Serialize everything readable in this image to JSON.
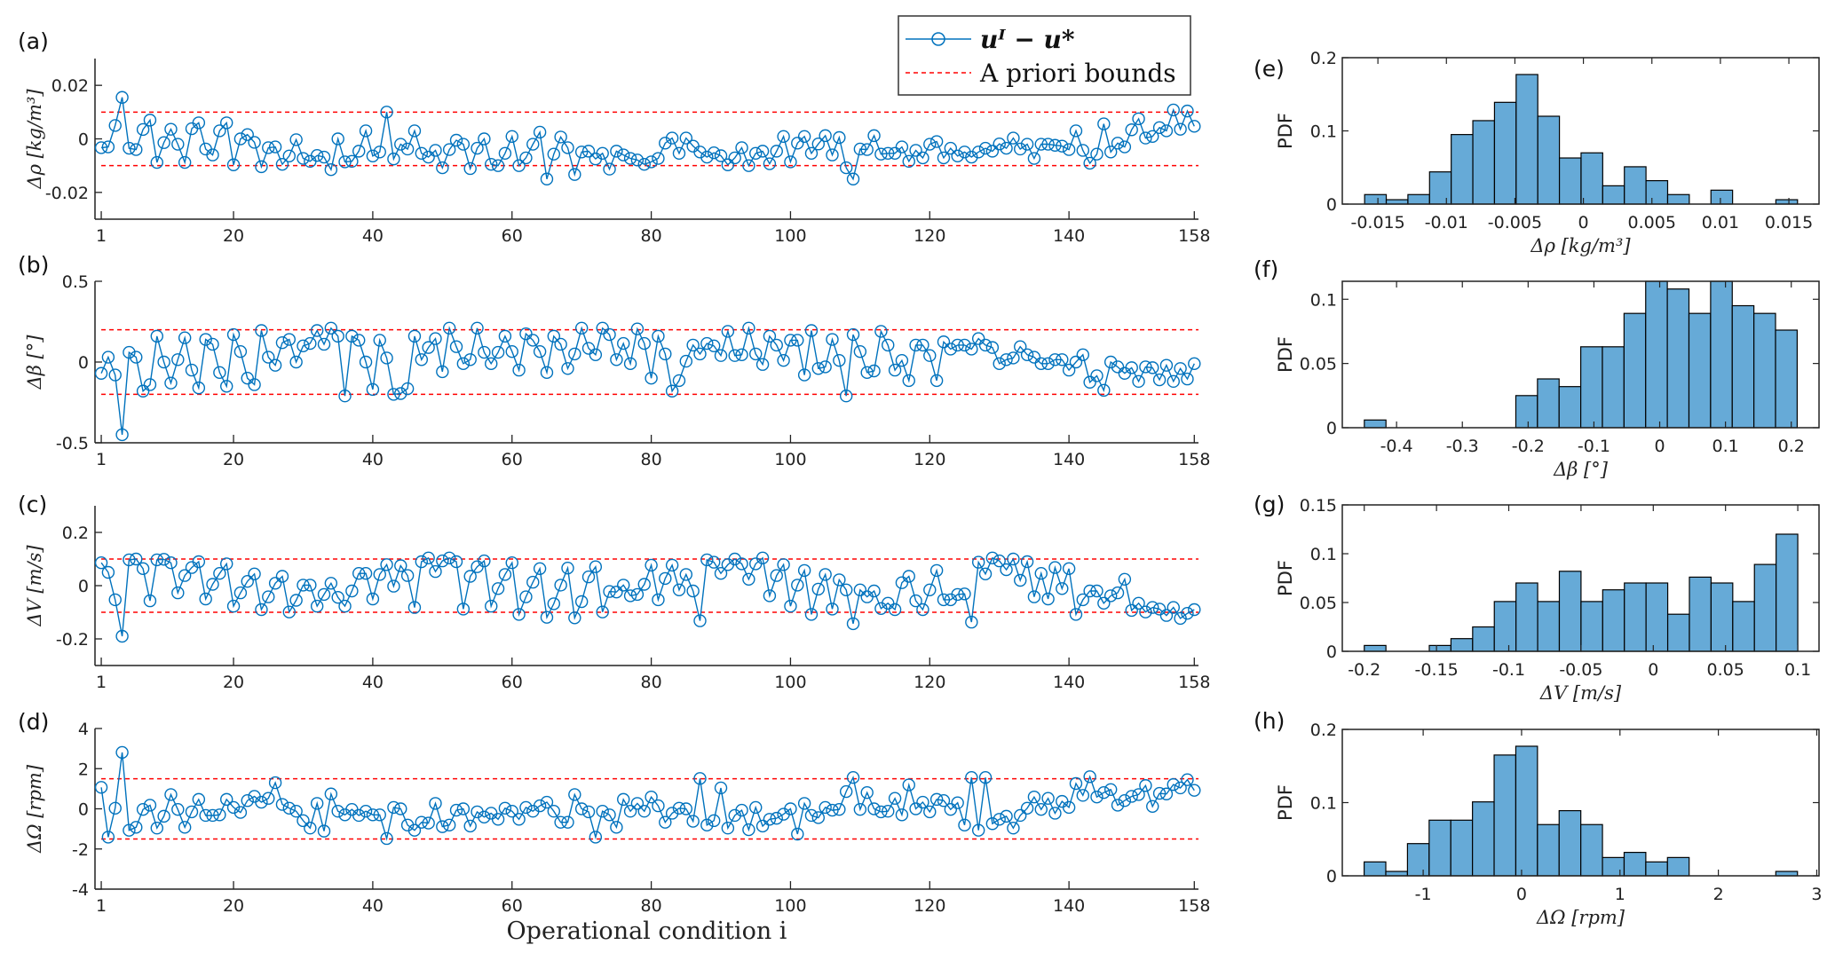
{
  "legend": {
    "series_label": "uᴵ − u*",
    "bounds_label": "A priori bounds",
    "position": "top-right of panel (a)"
  },
  "colors": {
    "series": "#0072BD",
    "bounds": "#FF0000",
    "hist_face": "#66AAD7",
    "hist_edge": "#000000"
  },
  "chart_data": [
    {
      "type": "line",
      "panel_label": "(a)",
      "ylabel": "Δρ [kg/m³]",
      "xlabel": "",
      "xlim": [
        0.1,
        158.6
      ],
      "ylim": [
        -0.03,
        0.03
      ],
      "xticks": [
        1,
        20,
        40,
        60,
        80,
        100,
        120,
        140,
        158
      ],
      "xtick_labels": [
        "1",
        "20",
        "40",
        "60",
        "80",
        "100",
        "120",
        "140",
        "158"
      ],
      "yticks": [
        -0.02,
        0,
        0.02
      ],
      "ytick_labels": [
        "-0.02",
        "0",
        "0.02"
      ],
      "bounds": [
        -0.01,
        0.01
      ],
      "marker": "circle",
      "grid": false,
      "values": [
        -0.0033,
        -0.003,
        0.005,
        0.0155,
        -0.0035,
        -0.004,
        0.0035,
        0.007,
        -0.0088,
        -0.0014,
        0.0036,
        -0.002,
        -0.0088,
        0.0038,
        0.006,
        -0.0038,
        -0.006,
        0.003,
        0.006,
        -0.0097,
        0,
        0.0016,
        -0.0013,
        -0.0104,
        -0.0033,
        -0.003,
        -0.0095,
        -0.0064,
        -0.0003,
        -0.0073,
        -0.0084,
        -0.0062,
        -0.0068,
        -0.0115,
        0,
        -0.0086,
        -0.0084,
        -0.0046,
        0.003,
        -0.0064,
        -0.0049,
        0.01,
        -0.0075,
        -0.002,
        -0.0038,
        0.003,
        -0.0054,
        -0.0068,
        -0.0043,
        -0.0108,
        -0.004,
        -0.0005,
        -0.002,
        -0.0111,
        -0.0035,
        0,
        -0.0095,
        -0.01,
        -0.0054,
        0.0009,
        -0.01,
        -0.0071,
        -0.002,
        0.0025,
        -0.015,
        -0.0057,
        0.0007,
        -0.0033,
        -0.0133,
        -0.0049,
        -0.0046,
        -0.0075,
        -0.0054,
        -0.0113,
        -0.0046,
        -0.006,
        -0.0073,
        -0.0079,
        -0.0095,
        -0.0086,
        -0.0073,
        -0.0016,
        0.0003,
        -0.0054,
        0.0003,
        -0.0027,
        -0.0049,
        -0.0068,
        -0.0052,
        -0.0063,
        -0.0097,
        -0.0071,
        -0.0033,
        -0.01,
        -0.0054,
        -0.0046,
        -0.0093,
        -0.0046,
        0.0009,
        -0.0086,
        -0.0016,
        0.0009,
        -0.0054,
        -0.0019,
        0.0012,
        -0.006,
        0.0005,
        -0.0108,
        -0.015,
        -0.0038,
        -0.004,
        0.0012,
        -0.0057,
        -0.0054,
        -0.0054,
        -0.003,
        -0.0084,
        -0.0043,
        -0.0071,
        -0.002,
        -0.001,
        -0.0071,
        -0.0035,
        -0.0064,
        -0.0049,
        -0.0068,
        -0.0049,
        -0.0035,
        -0.0046,
        -0.0019,
        -0.0035,
        0.0003,
        -0.0038,
        -0.002,
        -0.0073,
        -0.002,
        -0.002,
        -0.0024,
        -0.0027,
        -0.004,
        0.003,
        -0.0043,
        -0.0091,
        -0.0057,
        0.0056,
        -0.0049,
        -0.0016,
        -0.003,
        0.0034,
        0.0075,
        0.0003,
        0.0009,
        0.0042,
        0.003,
        0.0108,
        0.0036,
        0.0104,
        0.0047
      ]
    },
    {
      "type": "line",
      "panel_label": "(b)",
      "ylabel": "Δβ [°]",
      "xlabel": "",
      "xlim": [
        0.1,
        158.6
      ],
      "ylim": [
        -0.5,
        0.5
      ],
      "xticks": [
        1,
        20,
        40,
        60,
        80,
        100,
        120,
        140,
        158
      ],
      "xtick_labels": [
        "1",
        "20",
        "40",
        "60",
        "80",
        "100",
        "120",
        "140",
        "158"
      ],
      "yticks": [
        -0.5,
        0,
        0.5
      ],
      "ytick_labels": [
        "-0.5",
        "0",
        "0.5"
      ],
      "bounds": [
        -0.2,
        0.2
      ],
      "marker": "circle",
      "grid": false,
      "values": [
        -0.07,
        0.03,
        -0.08,
        -0.45,
        0.06,
        0.03,
        -0.18,
        -0.14,
        0.16,
        0,
        -0.13,
        0.015,
        0.15,
        -0.05,
        -0.16,
        0.14,
        0.11,
        -0.065,
        -0.15,
        0.17,
        0.065,
        -0.1,
        -0.14,
        0.195,
        0.03,
        -0.02,
        0.12,
        0.14,
        0,
        0.1,
        0.115,
        0.195,
        0.11,
        0.21,
        0.16,
        -0.21,
        0.16,
        0.135,
        0,
        -0.17,
        0.135,
        0.025,
        -0.2,
        -0.195,
        -0.165,
        0.16,
        0.015,
        0.09,
        0.145,
        -0.06,
        0.21,
        0.095,
        -0.01,
        0.015,
        0.21,
        0.06,
        -0.01,
        0.06,
        0.16,
        0.065,
        -0.05,
        0.175,
        0.135,
        0.065,
        -0.065,
        0.16,
        0.11,
        -0.04,
        0.05,
        0.21,
        0.085,
        0.045,
        0.21,
        0.17,
        0.015,
        0.115,
        -0.01,
        0.205,
        0.115,
        -0.1,
        0.16,
        0.05,
        -0.18,
        -0.115,
        0.005,
        0.105,
        0.05,
        0.115,
        0.1,
        0.04,
        0.19,
        0.04,
        0.045,
        0.21,
        0.05,
        -0.015,
        0.16,
        0.105,
        0.01,
        0.135,
        0.135,
        -0.08,
        0.195,
        -0.04,
        -0.03,
        0.14,
        0.01,
        -0.21,
        0.17,
        0.065,
        -0.065,
        -0.055,
        0.19,
        0.105,
        -0.05,
        0.01,
        -0.115,
        0.105,
        0.105,
        0.04,
        -0.115,
        0.125,
        0.08,
        0.105,
        0.105,
        0.08,
        0.145,
        0.105,
        0.09,
        -0.01,
        0.015,
        0.025,
        0.095,
        0.045,
        0.03,
        -0.01,
        -0.01,
        0.015,
        0.015,
        -0.05,
        0,
        0.045,
        -0.125,
        -0.085,
        -0.175,
        0,
        -0.03,
        -0.07,
        -0.035,
        -0.12,
        -0.03,
        -0.035,
        -0.11,
        -0.02,
        -0.12,
        -0.04,
        -0.105,
        -0.01
      ]
    },
    {
      "type": "line",
      "panel_label": "(c)",
      "ylabel": "ΔV [m/s]",
      "xlabel": "",
      "xlim": [
        0.1,
        158.6
      ],
      "ylim": [
        -0.3,
        0.3
      ],
      "xticks": [
        1,
        20,
        40,
        60,
        80,
        100,
        120,
        140,
        158
      ],
      "xtick_labels": [
        "1",
        "20",
        "40",
        "60",
        "80",
        "100",
        "120",
        "140",
        "158"
      ],
      "yticks": [
        -0.2,
        0,
        0.2
      ],
      "ytick_labels": [
        "-0.2",
        "0",
        "0.2"
      ],
      "bounds": [
        -0.1,
        0.1
      ],
      "marker": "circle",
      "grid": false,
      "values": [
        0.086,
        0.05,
        -0.053,
        -0.19,
        0.097,
        0.1,
        0.064,
        -0.057,
        0.097,
        0.099,
        0.086,
        -0.027,
        0.038,
        0.068,
        0.09,
        -0.05,
        0.005,
        0.046,
        0.082,
        -0.077,
        -0.027,
        0.016,
        0.044,
        -0.09,
        -0.042,
        0.009,
        0.035,
        -0.099,
        -0.055,
        0.002,
        0.002,
        -0.077,
        -0.033,
        0.009,
        -0.044,
        -0.077,
        -0.02,
        0.046,
        0.046,
        -0.05,
        0.042,
        0.079,
        -0.002,
        0.075,
        0.038,
        -0.082,
        0.09,
        0.104,
        0.053,
        0.093,
        0.104,
        0.09,
        -0.088,
        0.035,
        0.071,
        0.093,
        -0.077,
        -0.011,
        0.042,
        0.086,
        -0.108,
        -0.042,
        0.013,
        0.064,
        -0.119,
        -0.068,
        0.002,
        0.066,
        -0.121,
        -0.06,
        0.033,
        0.071,
        -0.099,
        -0.022,
        -0.024,
        0.002,
        -0.038,
        -0.033,
        0.005,
        0.077,
        -0.053,
        0.027,
        0.077,
        -0.016,
        0.042,
        -0.02,
        -0.132,
        0.097,
        0.088,
        0.046,
        0.079,
        0.1,
        0.082,
        0.024,
        0.082,
        0.104,
        -0.038,
        0.038,
        0.079,
        -0.077,
        0.002,
        0.057,
        -0.108,
        -0.013,
        0.042,
        -0.088,
        0.022,
        -0.016,
        -0.143,
        -0.016,
        -0.042,
        -0.02,
        -0.086,
        -0.066,
        -0.09,
        0.011,
        0.035,
        -0.057,
        -0.09,
        -0.016,
        0.057,
        -0.053,
        -0.053,
        -0.033,
        -0.031,
        -0.137,
        0.088,
        0.044,
        0.104,
        0.093,
        0.06,
        0.1,
        0.02,
        0.09,
        -0.042,
        0.046,
        -0.05,
        0.068,
        -0.011,
        0.064,
        -0.108,
        -0.053,
        -0.02,
        -0.02,
        -0.066,
        -0.038,
        -0.027,
        0.024,
        -0.093,
        -0.066,
        -0.099,
        -0.082,
        -0.088,
        -0.112,
        -0.082,
        -0.123,
        -0.104,
        -0.09
      ]
    },
    {
      "type": "line",
      "panel_label": "(d)",
      "ylabel": "ΔΩ [rpm]",
      "xlabel": "Operational condition i",
      "xlim": [
        0.1,
        158.6
      ],
      "ylim": [
        -4,
        4
      ],
      "xticks": [
        1,
        20,
        40,
        60,
        80,
        100,
        120,
        140,
        158
      ],
      "xtick_labels": [
        "1",
        "20",
        "40",
        "60",
        "80",
        "100",
        "120",
        "140",
        "158"
      ],
      "yticks": [
        -4,
        -2,
        0,
        2,
        4
      ],
      "ytick_labels": [
        "-4",
        "-2",
        "0",
        "2",
        "4"
      ],
      "bounds": [
        -1.5,
        1.5
      ],
      "marker": "circle",
      "grid": false,
      "values": [
        1.07,
        -1.41,
        0.03,
        2.81,
        -1.07,
        -0.92,
        -0.03,
        0.18,
        -0.96,
        -0.37,
        0.71,
        -0.03,
        -0.92,
        -0.15,
        0.47,
        -0.33,
        -0.33,
        -0.3,
        0.47,
        0.07,
        -0.18,
        0.41,
        0.62,
        0.33,
        0.52,
        1.3,
        0.22,
        0.03,
        -0.12,
        -0.59,
        -0.96,
        0.27,
        -1.11,
        0.74,
        -0.12,
        -0.3,
        -0.03,
        -0.33,
        -0.12,
        -0.3,
        -0.3,
        -1.48,
        0.07,
        0,
        -0.81,
        -1.07,
        -0.67,
        -0.71,
        0.27,
        -0.89,
        -0.81,
        -0.07,
        0,
        -0.86,
        -0.15,
        -0.41,
        -0.22,
        -0.52,
        0.03,
        -0.12,
        -0.52,
        0.07,
        -0.12,
        0.15,
        0.33,
        -0.12,
        -0.67,
        -0.67,
        0.71,
        0,
        -0.15,
        -1.41,
        -0.12,
        -0.3,
        -0.92,
        0.47,
        -0.12,
        0.27,
        -0.12,
        0.59,
        0.15,
        -0.67,
        -0.22,
        0.03,
        0,
        -0.62,
        1.51,
        -0.81,
        -0.59,
        1.04,
        -0.96,
        -0.33,
        -0.07,
        -1.04,
        0.07,
        -0.86,
        -0.52,
        -0.47,
        -0.27,
        0,
        -1.26,
        0.27,
        -0.33,
        -0.44,
        0.07,
        -0.07,
        -0.03,
        0.86,
        1.56,
        -0.03,
        0.81,
        0,
        -0.15,
        -0.12,
        0.52,
        -0.3,
        1.19,
        0,
        0.33,
        -0.15,
        0.47,
        0.41,
        -0.03,
        0.3,
        -0.81,
        1.56,
        -1.07,
        1.56,
        -0.74,
        -0.52,
        -0.37,
        -0.96,
        -0.33,
        0.03,
        0.59,
        -0.03,
        0.52,
        -0.22,
        0.37,
        0.07,
        1.26,
        0.67,
        1.6,
        0.59,
        0.81,
        0.96,
        0.18,
        0.41,
        0.62,
        0.71,
        1.16,
        0.12,
        0.77,
        0.74,
        1.21,
        1.04,
        1.45,
        0.92
      ]
    },
    {
      "type": "bar",
      "subtype": "histogram",
      "panel_label": "(e)",
      "ylabel": "PDF",
      "xlabel": "Δρ [kg/m³]",
      "xlim": [
        -0.0176,
        0.0172
      ],
      "ylim": [
        0,
        0.2
      ],
      "bin_start": -0.01597,
      "bin_width": 0.00158,
      "values": [
        0.013,
        0.006,
        0.013,
        0.044,
        0.095,
        0.114,
        0.139,
        0.177,
        0.12,
        0.063,
        0.07,
        0.025,
        0.051,
        0.032,
        0.013,
        0,
        0.019,
        0,
        0,
        0.006
      ],
      "xticks": [
        -0.015,
        -0.01,
        -0.005,
        0,
        0.005,
        0.01,
        0.015
      ],
      "xtick_labels": [
        "-0.015",
        "-0.01",
        "-0.005",
        "0",
        "0.005",
        "0.01",
        "0.015"
      ],
      "yticks": [
        0,
        0.1,
        0.2
      ],
      "ytick_labels": [
        "0",
        "0.1",
        "0.2"
      ]
    },
    {
      "type": "bar",
      "subtype": "histogram",
      "panel_label": "(f)",
      "ylabel": "PDF",
      "xlabel": "Δβ [°]",
      "xlim": [
        -0.4825,
        0.2422
      ],
      "ylim": [
        0,
        0.114
      ],
      "bin_start": -0.449,
      "bin_width": 0.0329,
      "values": [
        0.006,
        0,
        0,
        0,
        0,
        0,
        0,
        0.025,
        0.038,
        0.032,
        0.063,
        0.063,
        0.089,
        0.12,
        0.108,
        0.089,
        0.12,
        0.095,
        0.089,
        0.076
      ],
      "xticks": [
        -0.4,
        -0.3,
        -0.2,
        -0.1,
        0,
        0.1,
        0.2
      ],
      "xtick_labels": [
        "-0.4",
        "-0.3",
        "-0.2",
        "-0.1",
        "0",
        "0.1",
        "0.2"
      ],
      "yticks": [
        0,
        0.05,
        0.1
      ],
      "ytick_labels": [
        "0",
        "0.05",
        "0.1"
      ]
    },
    {
      "type": "bar",
      "subtype": "histogram",
      "panel_label": "(g)",
      "ylabel": "PDF",
      "xlabel": "ΔV [m/s]",
      "xlim": [
        -0.2152,
        0.1147
      ],
      "ylim": [
        0,
        0.15
      ],
      "bin_start": -0.2,
      "bin_width": 0.015,
      "values": [
        0.006,
        0,
        0,
        0.006,
        0.013,
        0.025,
        0.051,
        0.07,
        0.051,
        0.082,
        0.051,
        0.063,
        0.07,
        0.07,
        0.038,
        0.076,
        0.07,
        0.051,
        0.089,
        0.12
      ],
      "xticks": [
        -0.2,
        -0.15,
        -0.1,
        -0.05,
        0,
        0.05,
        0.1
      ],
      "xtick_labels": [
        "-0.2",
        "-0.15",
        "-0.1",
        "-0.05",
        "0",
        "0.05",
        "0.1"
      ],
      "yticks": [
        0,
        0.05,
        0.1,
        0.15
      ],
      "ytick_labels": [
        "0",
        "0.05",
        "0.1",
        "0.15"
      ]
    },
    {
      "type": "bar",
      "subtype": "histogram",
      "panel_label": "(h)",
      "ylabel": "PDF",
      "xlabel": "ΔΩ [rpm]",
      "xlim": [
        -1.822,
        3.023
      ],
      "ylim": [
        0,
        0.2
      ],
      "bin_start": -1.6,
      "bin_width": 0.2202,
      "values": [
        0.019,
        0.006,
        0.044,
        0.076,
        0.076,
        0.101,
        0.165,
        0.177,
        0.07,
        0.089,
        0.07,
        0.025,
        0.032,
        0.019,
        0.025,
        0,
        0,
        0,
        0,
        0.006
      ],
      "xticks": [
        -1,
        0,
        1,
        2,
        3
      ],
      "xtick_labels": [
        "-1",
        "0",
        "1",
        "2",
        "3"
      ],
      "yticks": [
        0,
        0.1,
        0.2
      ],
      "ytick_labels": [
        "0",
        "0.1",
        "0.2"
      ]
    }
  ]
}
